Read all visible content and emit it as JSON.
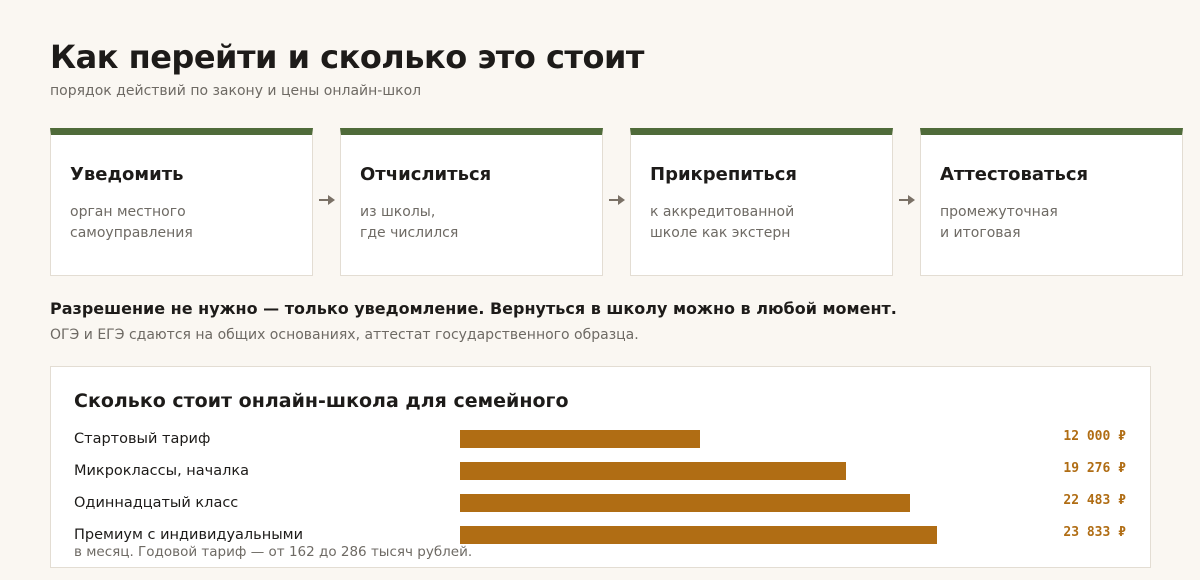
{
  "header": {
    "title": "Как перейти и сколько это стоит",
    "subtitle": "порядок действий по закону и цены онлайн-школ"
  },
  "steps": [
    {
      "title": "Уведомить",
      "text": "орган местного\nсамоуправления"
    },
    {
      "title": "Отчислиться",
      "text": "из школы,\nгде числился"
    },
    {
      "title": "Прикрепиться",
      "text": "к аккредитованной\nшколе как экстерн"
    },
    {
      "title": "Аттестоваться",
      "text": "промежуточная\nи итоговая"
    }
  ],
  "notes": {
    "bold": "Разрешение не нужно — только уведомление. Вернуться в школу можно в любой момент.",
    "regular": "ОГЭ и ЕГЭ сдаются на общих основаниях, аттестат государственного образца."
  },
  "colors": {
    "accent_green": "#4f6b3a",
    "bar": "#b06d14",
    "background": "#faf7f2",
    "muted_text": "#6e6a64"
  },
  "icons": [
    "arrow-right-icon"
  ],
  "chart_data": {
    "type": "bar",
    "orientation": "horizontal",
    "title": "Сколько стоит онлайн-школа для семейного",
    "categories": [
      "Стартовый тариф",
      "Микроклассы, началка",
      "Одиннадцатый класс",
      "Премиум с индивидуальными"
    ],
    "values": [
      12000,
      19276,
      22483,
      23833
    ],
    "value_labels": [
      "12 000 ₽",
      "19 276 ₽",
      "22 483 ₽",
      "23 833 ₽"
    ],
    "xlim": [
      0,
      30000
    ],
    "grid": false,
    "footnote": "в месяц. Годовой тариф — от 162 до 286 тысяч рублей."
  }
}
